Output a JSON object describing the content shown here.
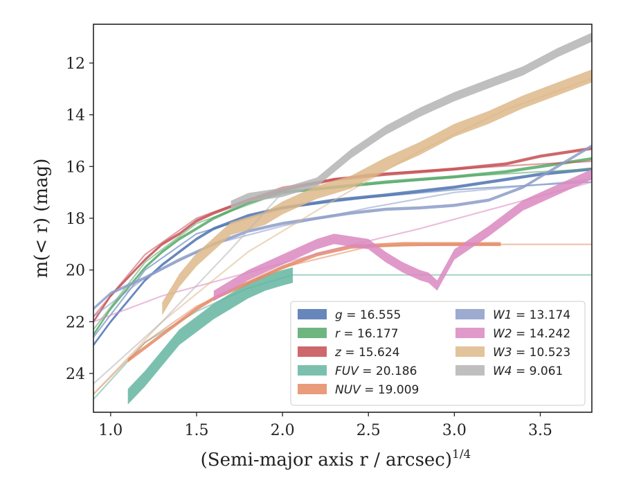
{
  "chart_data": {
    "type": "line",
    "xlabel": "(Semi-major axis r / arcsec)",
    "xlabel_exponent": "1/4",
    "ylabel": "m(< r) (mag)",
    "xlim": [
      0.9,
      3.8
    ],
    "ylim": [
      25.5,
      10.5
    ],
    "y_inverted": true,
    "grid": false,
    "legend_position": "lower-right",
    "x_ticks": [
      "1.0",
      "1.5",
      "2.0",
      "2.5",
      "3.0",
      "3.5"
    ],
    "y_ticks": [
      "12",
      "14",
      "16",
      "18",
      "20",
      "22",
      "24"
    ],
    "series": [
      {
        "name": "g = 16.555",
        "label_var": "g",
        "label_val": "16.555",
        "color": "#4c72b0",
        "profile": [
          [
            0.9,
            22.9
          ],
          [
            1.0,
            22.0
          ],
          [
            1.1,
            21.2
          ],
          [
            1.2,
            20.4
          ],
          [
            1.3,
            19.8
          ],
          [
            1.4,
            19.3
          ],
          [
            1.5,
            18.8
          ],
          [
            1.6,
            18.4
          ],
          [
            1.8,
            17.9
          ],
          [
            2.0,
            17.6
          ],
          [
            2.3,
            17.3
          ],
          [
            2.6,
            17.1
          ],
          [
            3.0,
            16.8
          ],
          [
            3.3,
            16.5
          ],
          [
            3.5,
            16.3
          ],
          [
            3.8,
            16.1
          ]
        ],
        "width": 0.12,
        "model": [
          [
            0.9,
            22.6
          ],
          [
            1.2,
            20.0
          ],
          [
            1.5,
            18.6
          ],
          [
            2.0,
            17.6
          ],
          [
            2.5,
            17.2
          ],
          [
            3.0,
            16.9
          ],
          [
            3.5,
            16.7
          ],
          [
            3.8,
            16.6
          ]
        ]
      },
      {
        "name": "r = 16.177",
        "label_var": "r",
        "label_val": "16.177",
        "color": "#55a868",
        "profile": [
          [
            0.9,
            22.5
          ],
          [
            1.0,
            21.5
          ],
          [
            1.1,
            20.7
          ],
          [
            1.2,
            19.9
          ],
          [
            1.3,
            19.3
          ],
          [
            1.4,
            18.8
          ],
          [
            1.5,
            18.4
          ],
          [
            1.6,
            18.0
          ],
          [
            1.8,
            17.4
          ],
          [
            2.0,
            17.0
          ],
          [
            2.3,
            16.8
          ],
          [
            2.6,
            16.6
          ],
          [
            3.0,
            16.4
          ],
          [
            3.3,
            16.2
          ],
          [
            3.5,
            16.0
          ],
          [
            3.8,
            15.7
          ]
        ],
        "width": 0.12,
        "model": [
          [
            0.9,
            22.3
          ],
          [
            1.2,
            19.7
          ],
          [
            1.5,
            18.2
          ],
          [
            2.0,
            17.0
          ],
          [
            2.5,
            16.7
          ],
          [
            3.0,
            16.4
          ],
          [
            3.5,
            16.2
          ],
          [
            3.8,
            16.1
          ]
        ]
      },
      {
        "name": "z = 15.624",
        "label_var": "z",
        "label_val": "15.624",
        "color": "#c44e52",
        "profile": [
          [
            0.9,
            22.0
          ],
          [
            1.0,
            21.0
          ],
          [
            1.1,
            20.3
          ],
          [
            1.2,
            19.6
          ],
          [
            1.3,
            19.0
          ],
          [
            1.4,
            18.6
          ],
          [
            1.5,
            18.1
          ],
          [
            1.6,
            17.8
          ],
          [
            1.8,
            17.3
          ],
          [
            2.0,
            16.9
          ],
          [
            2.3,
            16.5
          ],
          [
            2.6,
            16.3
          ],
          [
            3.0,
            16.1
          ],
          [
            3.3,
            15.9
          ],
          [
            3.5,
            15.6
          ],
          [
            3.8,
            15.3
          ]
        ],
        "width": 0.12,
        "model": [
          [
            0.9,
            21.8
          ],
          [
            1.2,
            19.4
          ],
          [
            1.5,
            18.0
          ],
          [
            2.0,
            16.8
          ],
          [
            2.5,
            16.3
          ],
          [
            3.0,
            16.1
          ],
          [
            3.5,
            15.9
          ],
          [
            3.8,
            15.8
          ]
        ]
      },
      {
        "name": "FUV = 20.186",
        "label_var": "FUV",
        "label_val": "20.186",
        "color": "#64b5a0",
        "profile": [
          [
            1.1,
            24.9
          ],
          [
            1.2,
            24.2
          ],
          [
            1.3,
            23.4
          ],
          [
            1.4,
            22.6
          ],
          [
            1.5,
            22.1
          ],
          [
            1.6,
            21.6
          ],
          [
            1.7,
            21.2
          ],
          [
            1.8,
            20.8
          ],
          [
            1.9,
            20.5
          ],
          [
            2.0,
            20.3
          ],
          [
            2.06,
            20.2
          ]
        ],
        "width": 0.6,
        "model": [
          [
            0.9,
            25.0
          ],
          [
            1.2,
            22.8
          ],
          [
            1.5,
            21.6
          ],
          [
            1.8,
            20.7
          ],
          [
            2.06,
            20.19
          ],
          [
            3.8,
            20.19
          ]
        ]
      },
      {
        "name": "NUV = 19.009",
        "label_var": "NUV",
        "label_val": "19.009",
        "color": "#e58a64",
        "profile": [
          [
            1.1,
            23.5
          ],
          [
            1.2,
            23.0
          ],
          [
            1.3,
            22.5
          ],
          [
            1.4,
            22.0
          ],
          [
            1.5,
            21.5
          ],
          [
            1.6,
            21.1
          ],
          [
            1.8,
            20.5
          ],
          [
            2.0,
            19.9
          ],
          [
            2.2,
            19.4
          ],
          [
            2.4,
            19.1
          ],
          [
            2.7,
            19.0
          ],
          [
            3.0,
            19.0
          ],
          [
            3.27,
            19.0
          ]
        ],
        "width": 0.15,
        "model": [
          [
            0.9,
            24.8
          ],
          [
            1.2,
            22.8
          ],
          [
            1.5,
            21.4
          ],
          [
            2.0,
            19.9
          ],
          [
            2.5,
            19.1
          ],
          [
            3.0,
            19.01
          ],
          [
            3.8,
            19.01
          ]
        ]
      },
      {
        "name": "W1 = 13.174",
        "label_var": "W1",
        "label_val": "13.174",
        "color": "#8c9cc8",
        "profile": [
          [
            0.9,
            21.5
          ],
          [
            1.0,
            20.9
          ],
          [
            1.2,
            20.3
          ],
          [
            1.4,
            19.6
          ],
          [
            1.6,
            19.0
          ],
          [
            1.8,
            18.5
          ],
          [
            2.0,
            18.2
          ],
          [
            2.2,
            18.0
          ],
          [
            2.4,
            17.8
          ],
          [
            2.6,
            17.65
          ],
          [
            2.8,
            17.6
          ],
          [
            3.0,
            17.5
          ],
          [
            3.2,
            17.3
          ],
          [
            3.4,
            16.8
          ],
          [
            3.6,
            16.0
          ],
          [
            3.8,
            15.2
          ]
        ],
        "width": 0.12,
        "model": [
          [
            0.9,
            21.8
          ],
          [
            1.2,
            20.3
          ],
          [
            1.6,
            19.0
          ],
          [
            2.0,
            18.3
          ],
          [
            2.5,
            17.6
          ],
          [
            3.0,
            17.0
          ],
          [
            3.5,
            16.7
          ],
          [
            3.8,
            16.5
          ]
        ]
      },
      {
        "name": "W2 = 14.242",
        "label_var": "W2",
        "label_val": "14.242",
        "color": "#db88c0",
        "profile": [
          [
            1.6,
            21.0
          ],
          [
            1.8,
            20.2
          ],
          [
            2.0,
            19.6
          ],
          [
            2.2,
            19.0
          ],
          [
            2.3,
            18.8
          ],
          [
            2.5,
            19.0
          ],
          [
            2.6,
            19.5
          ],
          [
            2.7,
            19.9
          ],
          [
            2.8,
            20.2
          ],
          [
            2.85,
            20.3
          ],
          [
            2.9,
            20.6
          ],
          [
            2.95,
            20.0
          ],
          [
            3.0,
            19.4
          ],
          [
            3.2,
            18.5
          ],
          [
            3.4,
            17.5
          ],
          [
            3.6,
            16.9
          ],
          [
            3.8,
            16.3
          ]
        ],
        "width": 0.4,
        "model": [
          [
            0.9,
            22.0
          ],
          [
            1.3,
            21.0
          ],
          [
            1.8,
            20.1
          ],
          [
            2.3,
            19.2
          ],
          [
            2.8,
            18.4
          ],
          [
            3.3,
            17.5
          ],
          [
            3.8,
            16.6
          ]
        ]
      },
      {
        "name": "W3 = 10.523",
        "label_var": "W3",
        "label_val": "10.523",
        "color": "#ddb88a",
        "profile": [
          [
            1.3,
            21.5
          ],
          [
            1.4,
            20.4
          ],
          [
            1.5,
            19.6
          ],
          [
            1.6,
            19.0
          ],
          [
            1.7,
            18.4
          ],
          [
            1.8,
            18.2
          ],
          [
            1.9,
            18.0
          ],
          [
            2.0,
            17.6
          ],
          [
            2.2,
            17.0
          ],
          [
            2.4,
            16.6
          ],
          [
            2.6,
            15.9
          ],
          [
            2.8,
            15.3
          ],
          [
            3.0,
            14.6
          ],
          [
            3.2,
            14.1
          ],
          [
            3.4,
            13.5
          ],
          [
            3.6,
            13.0
          ],
          [
            3.8,
            12.5
          ]
        ],
        "width": 0.5,
        "model": [
          [
            0.9,
            24.8
          ],
          [
            1.3,
            22.0
          ],
          [
            1.8,
            19.3
          ],
          [
            2.3,
            17.3
          ],
          [
            2.8,
            15.4
          ],
          [
            3.3,
            13.8
          ],
          [
            3.8,
            12.6
          ]
        ]
      },
      {
        "name": "W4 = 9.061",
        "label_var": "W4",
        "label_val": "9.061",
        "color": "#b4b4b4",
        "profile": [
          [
            1.7,
            17.5
          ],
          [
            1.8,
            17.2
          ],
          [
            2.0,
            17.0
          ],
          [
            2.2,
            16.6
          ],
          [
            2.4,
            15.5
          ],
          [
            2.6,
            14.6
          ],
          [
            2.8,
            13.9
          ],
          [
            3.0,
            13.3
          ],
          [
            3.2,
            12.8
          ],
          [
            3.4,
            12.3
          ],
          [
            3.6,
            11.6
          ],
          [
            3.8,
            11.0
          ]
        ],
        "width": 0.35,
        "model": [
          [
            0.9,
            24.4
          ],
          [
            1.3,
            22.0
          ],
          [
            1.7,
            19.2
          ],
          [
            2.0,
            17.0
          ]
        ]
      }
    ]
  }
}
